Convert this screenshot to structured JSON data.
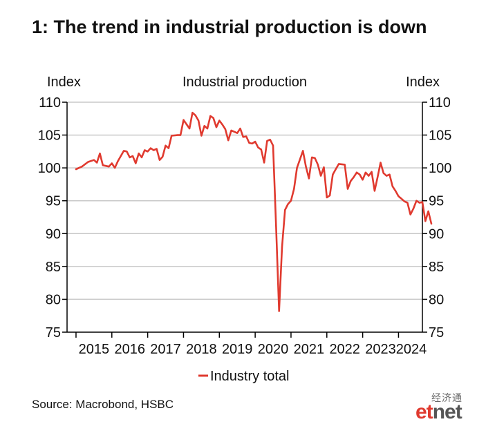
{
  "title": "1: The trend in industrial production is down",
  "source": "Source: Macrobond, HSBC",
  "watermark": {
    "chinese": "经济通",
    "latin_a": "et",
    "latin_b": "net"
  },
  "chart_data": {
    "type": "line",
    "title": "Industrial production",
    "ylabel_left": "Index",
    "ylabel_right": "Index",
    "ylim": [
      75,
      110
    ],
    "yticks": [
      75,
      80,
      85,
      90,
      95,
      100,
      105,
      110
    ],
    "xlim": [
      "2014-10",
      "2024-09"
    ],
    "xticks": [
      "2015",
      "2016",
      "2017",
      "2018",
      "2019",
      "2020",
      "2021",
      "2022",
      "2023",
      "2024"
    ],
    "grid": true,
    "legend_position": "bottom-center",
    "series": [
      {
        "name": "Industry total",
        "color": "#e03a2f",
        "points": [
          [
            "2015-01",
            99.8
          ],
          [
            "2015-03",
            100.2
          ],
          [
            "2015-05",
            100.9
          ],
          [
            "2015-07",
            101.2
          ],
          [
            "2015-08",
            100.8
          ],
          [
            "2015-09",
            102.2
          ],
          [
            "2015-10",
            100.4
          ],
          [
            "2015-12",
            100.2
          ],
          [
            "2016-01",
            100.7
          ],
          [
            "2016-02",
            100.0
          ],
          [
            "2016-03",
            101.0
          ],
          [
            "2016-05",
            102.6
          ],
          [
            "2016-06",
            102.5
          ],
          [
            "2016-07",
            101.6
          ],
          [
            "2016-08",
            101.8
          ],
          [
            "2016-09",
            100.7
          ],
          [
            "2016-10",
            102.2
          ],
          [
            "2016-11",
            101.6
          ],
          [
            "2016-12",
            102.7
          ],
          [
            "2017-01",
            102.5
          ],
          [
            "2017-02",
            103.0
          ],
          [
            "2017-03",
            102.7
          ],
          [
            "2017-04",
            102.9
          ],
          [
            "2017-05",
            101.2
          ],
          [
            "2017-06",
            101.7
          ],
          [
            "2017-07",
            103.4
          ],
          [
            "2017-08",
            103.0
          ],
          [
            "2017-09",
            104.9
          ],
          [
            "2017-11",
            105.0
          ],
          [
            "2017-12",
            105.0
          ],
          [
            "2018-01",
            107.3
          ],
          [
            "2018-03",
            106.0
          ],
          [
            "2018-04",
            108.4
          ],
          [
            "2018-05",
            108.0
          ],
          [
            "2018-06",
            107.2
          ],
          [
            "2018-07",
            104.9
          ],
          [
            "2018-08",
            106.4
          ],
          [
            "2018-09",
            106.0
          ],
          [
            "2018-10",
            107.9
          ],
          [
            "2018-11",
            107.6
          ],
          [
            "2018-12",
            106.2
          ],
          [
            "2019-01",
            107.2
          ],
          [
            "2019-02",
            106.6
          ],
          [
            "2019-03",
            105.9
          ],
          [
            "2019-04",
            104.2
          ],
          [
            "2019-05",
            105.7
          ],
          [
            "2019-06",
            105.5
          ],
          [
            "2019-07",
            105.3
          ],
          [
            "2019-08",
            106.0
          ],
          [
            "2019-09",
            104.7
          ],
          [
            "2019-10",
            104.8
          ],
          [
            "2019-11",
            103.8
          ],
          [
            "2019-12",
            103.7
          ],
          [
            "2020-01",
            104.0
          ],
          [
            "2020-02",
            103.1
          ],
          [
            "2020-03",
            102.8
          ],
          [
            "2020-04",
            100.8
          ],
          [
            "2020-05",
            104.1
          ],
          [
            "2020-06",
            104.3
          ],
          [
            "2020-07",
            103.4
          ],
          [
            "2020-08",
            91.0
          ],
          [
            "2020-09",
            78.2
          ],
          [
            "2020-10",
            88.0
          ],
          [
            "2020-11",
            93.6
          ],
          [
            "2020-12",
            94.5
          ],
          [
            "2021-01",
            95.0
          ],
          [
            "2021-02",
            96.8
          ],
          [
            "2021-03",
            100.0
          ],
          [
            "2021-04",
            101.3
          ],
          [
            "2021-05",
            102.6
          ],
          [
            "2021-06",
            100.2
          ],
          [
            "2021-07",
            98.4
          ],
          [
            "2021-08",
            101.6
          ],
          [
            "2021-09",
            101.5
          ],
          [
            "2021-10",
            100.5
          ],
          [
            "2021-11",
            98.8
          ],
          [
            "2021-12",
            100.1
          ],
          [
            "2022-01",
            95.5
          ],
          [
            "2022-02",
            95.8
          ],
          [
            "2022-03",
            99.0
          ],
          [
            "2022-04",
            99.8
          ],
          [
            "2022-05",
            100.6
          ],
          [
            "2022-07",
            100.5
          ],
          [
            "2022-08",
            96.8
          ],
          [
            "2022-09",
            98.0
          ],
          [
            "2022-10",
            98.6
          ],
          [
            "2022-11",
            99.3
          ],
          [
            "2022-12",
            99.0
          ],
          [
            "2023-01",
            98.2
          ],
          [
            "2023-02",
            99.3
          ],
          [
            "2023-03",
            98.8
          ],
          [
            "2023-04",
            99.4
          ],
          [
            "2023-05",
            96.5
          ],
          [
            "2023-06",
            98.6
          ],
          [
            "2023-07",
            100.8
          ],
          [
            "2023-08",
            99.2
          ],
          [
            "2023-09",
            98.8
          ],
          [
            "2023-10",
            99.0
          ],
          [
            "2023-11",
            97.2
          ],
          [
            "2023-12",
            96.5
          ],
          [
            "2024-01",
            95.7
          ],
          [
            "2024-02",
            95.3
          ],
          [
            "2024-03",
            94.9
          ],
          [
            "2024-04",
            94.7
          ],
          [
            "2024-05",
            92.9
          ],
          [
            "2024-06",
            93.8
          ],
          [
            "2024-07",
            95.0
          ],
          [
            "2024-08",
            94.7
          ],
          [
            "2024-09",
            94.8
          ],
          [
            "2024-10",
            91.9
          ],
          [
            "2024-11",
            93.4
          ],
          [
            "2024-12",
            91.5
          ]
        ]
      }
    ]
  }
}
